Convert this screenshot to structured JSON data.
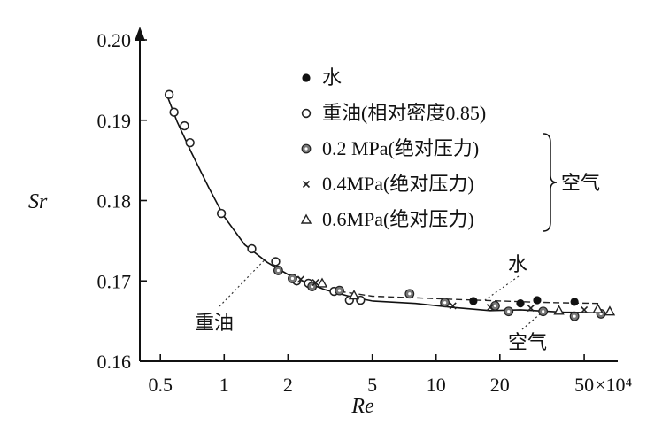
{
  "chart_data": {
    "type": "scatter",
    "xlabel": "Re",
    "ylabel": "Sr",
    "x_scale": "log",
    "x_unit_suffix": "×10⁴",
    "xlim": [
      0.4,
      72
    ],
    "ylim": [
      0.16,
      0.2
    ],
    "x_ticks": [
      0.5,
      1,
      2,
      5,
      10,
      20,
      50
    ],
    "x_tick_labels": [
      "0.5",
      "1",
      "2",
      "5",
      "10",
      "20",
      "50"
    ],
    "y_ticks": [
      0.16,
      0.17,
      0.18,
      0.19,
      0.2
    ],
    "y_tick_labels": [
      "0.16",
      "0.17",
      "0.18",
      "0.19",
      "0.20"
    ],
    "grid": false,
    "legend_position": "top-center",
    "legend_group_label": "空气",
    "series": [
      {
        "name": "水",
        "marker": "filled-circle",
        "points": [
          [
            15,
            0.1675
          ],
          [
            25,
            0.1672
          ],
          [
            30,
            0.1676
          ],
          [
            45,
            0.1674
          ]
        ]
      },
      {
        "name": "重油(相对密度0.85)",
        "marker": "open-circle",
        "points": [
          [
            0.55,
            0.1932
          ],
          [
            0.58,
            0.191
          ],
          [
            0.65,
            0.1893
          ],
          [
            0.69,
            0.1872
          ],
          [
            0.97,
            0.1784
          ],
          [
            1.35,
            0.174
          ],
          [
            1.75,
            0.1724
          ],
          [
            2.2,
            0.17
          ],
          [
            2.5,
            0.1697
          ],
          [
            3.3,
            0.1687
          ],
          [
            3.9,
            0.1676
          ],
          [
            4.4,
            0.1676
          ]
        ]
      },
      {
        "name": "0.2 MPa(绝对压力)",
        "marker": "dotted-circle",
        "points": [
          [
            1.8,
            0.1713
          ],
          [
            2.1,
            0.1703
          ],
          [
            2.6,
            0.1693
          ],
          [
            3.5,
            0.1688
          ],
          [
            7.5,
            0.1684
          ],
          [
            11,
            0.1673
          ],
          [
            19,
            0.1669
          ],
          [
            22,
            0.1662
          ],
          [
            32,
            0.1662
          ],
          [
            45,
            0.1656
          ],
          [
            60,
            0.1659
          ]
        ]
      },
      {
        "name": "0.4MPa(绝对压力)",
        "marker": "cross",
        "points": [
          [
            2.3,
            0.1702
          ],
          [
            2.7,
            0.1698
          ],
          [
            12,
            0.1669
          ],
          [
            18,
            0.1667
          ],
          [
            28,
            0.1666
          ],
          [
            50,
            0.1664
          ]
        ]
      },
      {
        "name": "0.6MPa(绝对压力)",
        "marker": "triangle",
        "points": [
          [
            2.9,
            0.1697
          ],
          [
            4.1,
            0.1682
          ],
          [
            38,
            0.1663
          ],
          [
            58,
            0.1665
          ],
          [
            66,
            0.1662
          ]
        ]
      }
    ],
    "curves": [
      {
        "name": "重油",
        "style": "solid",
        "points": [
          [
            0.53,
            0.1935
          ],
          [
            0.6,
            0.1898
          ],
          [
            0.7,
            0.186
          ],
          [
            0.85,
            0.1815
          ],
          [
            1.0,
            0.178
          ],
          [
            1.25,
            0.1745
          ],
          [
            1.6,
            0.1723
          ],
          [
            2.0,
            0.1708
          ],
          [
            2.5,
            0.1697
          ],
          [
            3.0,
            0.1689
          ],
          [
            4.0,
            0.168
          ],
          [
            5.0,
            0.1675
          ]
        ]
      },
      {
        "name": "水",
        "style": "dashed",
        "points": [
          [
            3.5,
            0.1687
          ],
          [
            5,
            0.1681
          ],
          [
            8,
            0.1679
          ],
          [
            12,
            0.1677
          ],
          [
            20,
            0.1675
          ],
          [
            35,
            0.1673
          ],
          [
            60,
            0.1672
          ]
        ]
      },
      {
        "name": "空气",
        "style": "solid",
        "points": [
          [
            5,
            0.1675
          ],
          [
            8,
            0.1672
          ],
          [
            12,
            0.1667
          ],
          [
            18,
            0.1663
          ],
          [
            25,
            0.1664
          ],
          [
            40,
            0.1661
          ],
          [
            65,
            0.166
          ]
        ]
      }
    ],
    "annotations": [
      {
        "text": "水",
        "target": "水"
      },
      {
        "text": "重油",
        "target": "重油"
      },
      {
        "text": "空气",
        "target": "空气"
      }
    ]
  }
}
